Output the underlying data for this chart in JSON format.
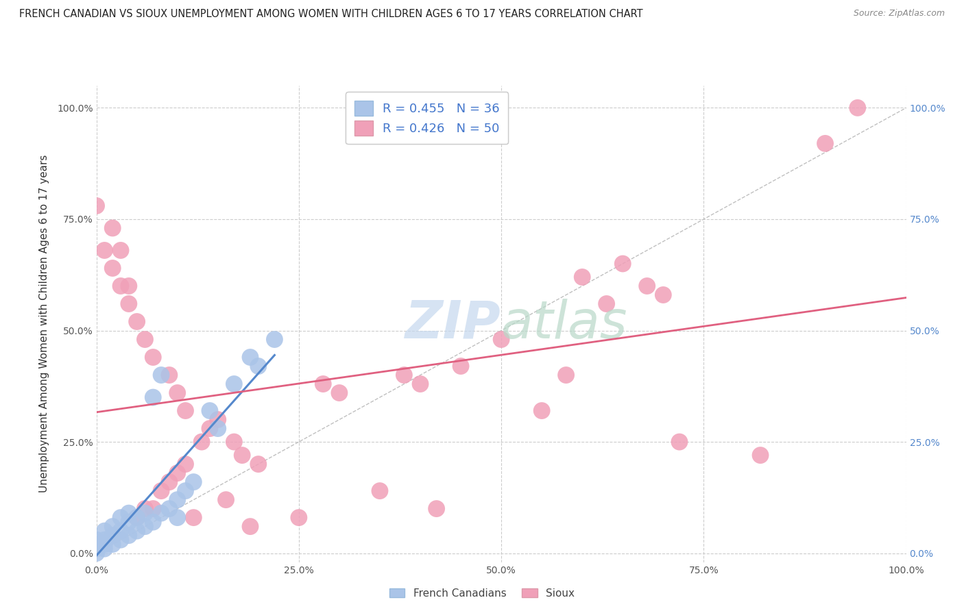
{
  "title": "FRENCH CANADIAN VS SIOUX UNEMPLOYMENT AMONG WOMEN WITH CHILDREN AGES 6 TO 17 YEARS CORRELATION CHART",
  "source": "Source: ZipAtlas.com",
  "ylabel": "Unemployment Among Women with Children Ages 6 to 17 years",
  "xlim": [
    0.0,
    1.0
  ],
  "ylim": [
    -0.02,
    1.05
  ],
  "french_R": 0.455,
  "french_N": 36,
  "sioux_R": 0.426,
  "sioux_N": 50,
  "french_color": "#aac4e8",
  "sioux_color": "#f0a0b8",
  "french_line_color": "#5588cc",
  "sioux_line_color": "#e06080",
  "diagonal_color": "#c8c8c8",
  "background_color": "#ffffff",
  "fc_x": [
    0.0,
    0.0,
    0.0,
    0.0,
    0.01,
    0.01,
    0.01,
    0.01,
    0.02,
    0.02,
    0.02,
    0.03,
    0.03,
    0.03,
    0.04,
    0.04,
    0.04,
    0.05,
    0.05,
    0.06,
    0.06,
    0.07,
    0.07,
    0.08,
    0.08,
    0.09,
    0.1,
    0.1,
    0.11,
    0.12,
    0.14,
    0.15,
    0.17,
    0.19,
    0.2,
    0.22
  ],
  "fc_y": [
    0.0,
    0.01,
    0.02,
    0.03,
    0.01,
    0.02,
    0.03,
    0.05,
    0.02,
    0.04,
    0.06,
    0.03,
    0.05,
    0.08,
    0.04,
    0.07,
    0.09,
    0.05,
    0.08,
    0.06,
    0.09,
    0.07,
    0.35,
    0.09,
    0.4,
    0.1,
    0.08,
    0.12,
    0.14,
    0.16,
    0.32,
    0.28,
    0.38,
    0.44,
    0.42,
    0.48
  ],
  "sx_x": [
    0.0,
    0.01,
    0.02,
    0.02,
    0.03,
    0.03,
    0.04,
    0.04,
    0.05,
    0.05,
    0.06,
    0.06,
    0.07,
    0.07,
    0.08,
    0.09,
    0.09,
    0.1,
    0.1,
    0.11,
    0.11,
    0.12,
    0.13,
    0.14,
    0.15,
    0.16,
    0.17,
    0.18,
    0.19,
    0.2,
    0.25,
    0.28,
    0.3,
    0.35,
    0.38,
    0.4,
    0.42,
    0.45,
    0.5,
    0.55,
    0.58,
    0.6,
    0.63,
    0.65,
    0.68,
    0.7,
    0.72,
    0.82,
    0.9,
    0.94
  ],
  "sx_y": [
    0.78,
    0.68,
    0.64,
    0.73,
    0.6,
    0.68,
    0.56,
    0.6,
    0.52,
    0.08,
    0.48,
    0.1,
    0.1,
    0.44,
    0.14,
    0.4,
    0.16,
    0.36,
    0.18,
    0.32,
    0.2,
    0.08,
    0.25,
    0.28,
    0.3,
    0.12,
    0.25,
    0.22,
    0.06,
    0.2,
    0.08,
    0.38,
    0.36,
    0.14,
    0.4,
    0.38,
    0.1,
    0.42,
    0.48,
    0.32,
    0.4,
    0.62,
    0.56,
    0.65,
    0.6,
    0.58,
    0.25,
    0.22,
    0.92,
    1.0
  ]
}
